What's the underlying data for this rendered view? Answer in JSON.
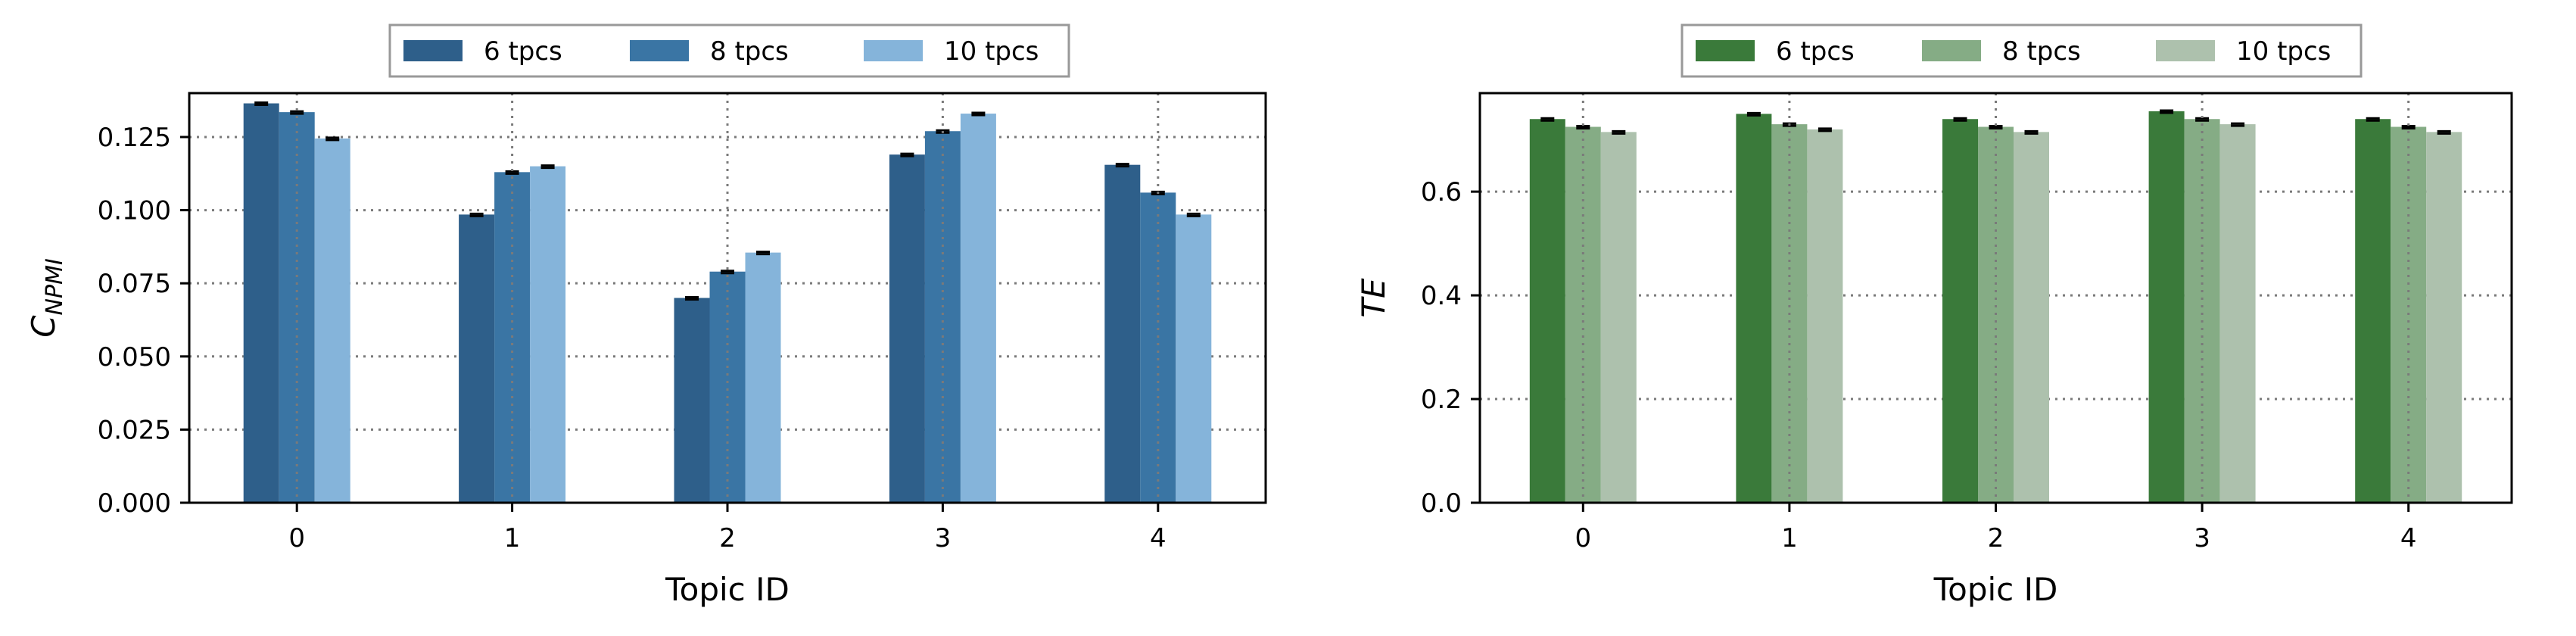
{
  "chart_data": [
    {
      "type": "bar",
      "categories": [
        "0",
        "1",
        "2",
        "3",
        "4"
      ],
      "xlabel": "Topic ID",
      "ylabel_main": "C",
      "ylabel_sub": "NPMI",
      "ylim": [
        0,
        0.14
      ],
      "yticks": [
        "0.000",
        "0.025",
        "0.050",
        "0.075",
        "0.100",
        "0.125"
      ],
      "ytick_values": [
        0,
        0.025,
        0.05,
        0.075,
        0.1,
        0.125
      ],
      "grid": "dotted",
      "legend_position": "top-center",
      "error_bars": true,
      "series": [
        {
          "name": "6 tpcs",
          "color": "#2e5f8a",
          "values": [
            0.1365,
            0.0985,
            0.07,
            0.119,
            0.1155
          ]
        },
        {
          "name": "8 tpcs",
          "color": "#3a75a4",
          "values": [
            0.1335,
            0.113,
            0.079,
            0.127,
            0.106
          ]
        },
        {
          "name": "10 tpcs",
          "color": "#85b4da",
          "values": [
            0.1245,
            0.115,
            0.0855,
            0.133,
            0.0985
          ]
        }
      ]
    },
    {
      "type": "bar",
      "categories": [
        "0",
        "1",
        "2",
        "3",
        "4"
      ],
      "xlabel": "Topic ID",
      "ylabel_main": "TE",
      "ylabel_sub": "",
      "ylim": [
        0,
        0.79
      ],
      "yticks": [
        "0.0",
        "0.2",
        "0.4",
        "0.6"
      ],
      "ytick_values": [
        0,
        0.2,
        0.4,
        0.6
      ],
      "grid": "dotted",
      "legend_position": "top-center",
      "error_bars": true,
      "series": [
        {
          "name": "6 tpcs",
          "color": "#3a7a3a",
          "values": [
            0.74,
            0.75,
            0.74,
            0.755,
            0.74
          ]
        },
        {
          "name": "8 tpcs",
          "color": "#85ac85",
          "values": [
            0.725,
            0.73,
            0.725,
            0.74,
            0.725
          ]
        },
        {
          "name": "10 tpcs",
          "color": "#adc1ad",
          "values": [
            0.715,
            0.72,
            0.715,
            0.73,
            0.715
          ]
        }
      ]
    }
  ]
}
